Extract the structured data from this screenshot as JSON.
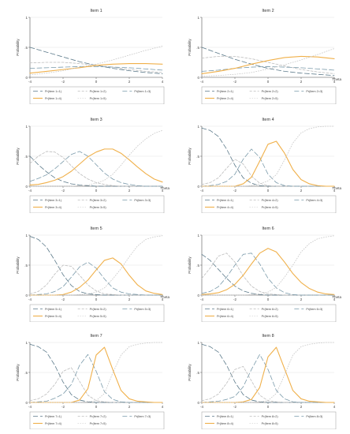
{
  "figure": {
    "style": {
      "series_colors": [
        "#5c7a8a",
        "#bdbdbd",
        "#7a9aaa",
        "#f0b04a",
        "#c6c6c6"
      ],
      "series_dash": [
        "long-dash",
        "dash",
        "long-dash",
        "solid",
        "dot"
      ]
    }
  },
  "chart_data": [
    {
      "type": "line",
      "title": "Item 1",
      "ylabel": "Probability",
      "xlabel": "",
      "xlim": [
        -4,
        4
      ],
      "ylim": [
        0,
        1
      ],
      "xticks": [
        "-4",
        "-2",
        "0",
        "2",
        "4"
      ],
      "yticks": [
        "0",
        ".5",
        "1"
      ],
      "x": [
        -4,
        -3,
        -2,
        -1,
        0,
        1,
        2,
        3,
        4
      ],
      "series": [
        {
          "name": "Pr(item 1=1)",
          "values": [
            0.5,
            0.42,
            0.34,
            0.26,
            0.2,
            0.15,
            0.11,
            0.08,
            0.06
          ]
        },
        {
          "name": "Pr(item 1=2)",
          "values": [
            0.24,
            0.25,
            0.25,
            0.23,
            0.2,
            0.17,
            0.13,
            0.1,
            0.08
          ]
        },
        {
          "name": "Pr(item 1=3)",
          "values": [
            0.15,
            0.16,
            0.17,
            0.18,
            0.18,
            0.17,
            0.16,
            0.14,
            0.12
          ]
        },
        {
          "name": "Pr(item 1=4)",
          "values": [
            0.07,
            0.1,
            0.13,
            0.16,
            0.2,
            0.22,
            0.23,
            0.23,
            0.22
          ]
        },
        {
          "name": "Pr(item 1=5)",
          "values": [
            0.04,
            0.07,
            0.11,
            0.17,
            0.22,
            0.29,
            0.37,
            0.45,
            0.52
          ]
        }
      ],
      "legend": "bottom"
    },
    {
      "type": "line",
      "title": "Item 2",
      "ylabel": "Probability",
      "xlabel": "Theta",
      "xlim": [
        -4,
        4
      ],
      "ylim": [
        0,
        1
      ],
      "xticks": [
        "-4",
        "-2",
        "0",
        "2",
        "4"
      ],
      "yticks": [
        "0",
        ".5",
        "1"
      ],
      "x": [
        -4,
        -3,
        -2,
        -1,
        0,
        1,
        2,
        3,
        4
      ],
      "series": [
        {
          "name": "Pr(item 2=1)",
          "values": [
            0.5,
            0.4,
            0.3,
            0.22,
            0.15,
            0.1,
            0.07,
            0.05,
            0.03
          ]
        },
        {
          "name": "Pr(item 2=2)",
          "values": [
            0.32,
            0.35,
            0.35,
            0.31,
            0.25,
            0.19,
            0.13,
            0.09,
            0.06
          ]
        },
        {
          "name": "Pr(item 2=3)",
          "values": [
            0.1,
            0.12,
            0.15,
            0.17,
            0.18,
            0.17,
            0.16,
            0.14,
            0.12
          ]
        },
        {
          "name": "Pr(item 2=4)",
          "values": [
            0.06,
            0.1,
            0.15,
            0.22,
            0.28,
            0.33,
            0.35,
            0.34,
            0.31
          ]
        },
        {
          "name": "Pr(item 2=5)",
          "values": [
            0.02,
            0.03,
            0.05,
            0.08,
            0.14,
            0.21,
            0.29,
            0.38,
            0.48
          ]
        }
      ],
      "legend": "bottom"
    },
    {
      "type": "line",
      "title": "Item 3",
      "ylabel": "Probability",
      "xlabel": "Theta",
      "xlim": [
        -4,
        4
      ],
      "ylim": [
        0,
        1
      ],
      "xticks": [
        "-4",
        "-2",
        "0",
        "2",
        "4"
      ],
      "yticks": [
        "0",
        ".5",
        "1"
      ],
      "x": [
        -4,
        -3.5,
        -3,
        -2.5,
        -2,
        -1.5,
        -1,
        -0.5,
        0,
        0.5,
        1,
        1.5,
        2,
        2.5,
        3,
        3.5,
        4
      ],
      "series": [
        {
          "name": "Pr(item 3=1)",
          "values": [
            0.5,
            0.36,
            0.24,
            0.14,
            0.08,
            0.04,
            0.02,
            0.01,
            0.0,
            0.0,
            0.0,
            0.0,
            0.0,
            0.0,
            0.0,
            0.0,
            0.0
          ]
        },
        {
          "name": "Pr(item 3=2)",
          "values": [
            0.38,
            0.5,
            0.58,
            0.57,
            0.48,
            0.34,
            0.21,
            0.12,
            0.06,
            0.03,
            0.01,
            0.0,
            0.0,
            0.0,
            0.0,
            0.0,
            0.0
          ]
        },
        {
          "name": "Pr(item 3=3)",
          "values": [
            0.08,
            0.13,
            0.19,
            0.29,
            0.41,
            0.53,
            0.58,
            0.5,
            0.36,
            0.22,
            0.12,
            0.06,
            0.03,
            0.01,
            0.0,
            0.0,
            0.0
          ]
        },
        {
          "name": "Pr(item 3=4)",
          "values": [
            0.02,
            0.03,
            0.06,
            0.1,
            0.16,
            0.25,
            0.37,
            0.49,
            0.57,
            0.62,
            0.62,
            0.55,
            0.44,
            0.32,
            0.21,
            0.12,
            0.07
          ]
        },
        {
          "name": "Pr(item 3=5)",
          "values": [
            0.0,
            0.0,
            0.0,
            0.0,
            0.0,
            0.0,
            0.01,
            0.02,
            0.05,
            0.1,
            0.2,
            0.35,
            0.52,
            0.67,
            0.79,
            0.88,
            0.93
          ]
        }
      ],
      "legend": "bottom"
    },
    {
      "type": "line",
      "title": "Item 4",
      "ylabel": "Probability",
      "xlabel": "Theta",
      "xlim": [
        -4,
        4
      ],
      "ylim": [
        0,
        1
      ],
      "xticks": [
        "-4",
        "-2",
        "0",
        "2",
        "4"
      ],
      "yticks": [
        "0",
        ".5",
        "1"
      ],
      "x": [
        -4,
        -3.5,
        -3,
        -2.5,
        -2,
        -1.5,
        -1,
        -0.5,
        0,
        0.5,
        1,
        1.5,
        2,
        2.5,
        3,
        3.5,
        4
      ],
      "series": [
        {
          "name": "Pr(item 4=1)",
          "values": [
            0.97,
            0.93,
            0.83,
            0.62,
            0.35,
            0.14,
            0.05,
            0.01,
            0.0,
            0.0,
            0.0,
            0.0,
            0.0,
            0.0,
            0.0,
            0.0,
            0.0
          ]
        },
        {
          "name": "Pr(item 4=2)",
          "values": [
            0.03,
            0.06,
            0.14,
            0.3,
            0.45,
            0.37,
            0.17,
            0.05,
            0.01,
            0.0,
            0.0,
            0.0,
            0.0,
            0.0,
            0.0,
            0.0,
            0.0
          ]
        },
        {
          "name": "Pr(item 4=3)",
          "values": [
            0.0,
            0.01,
            0.03,
            0.08,
            0.2,
            0.45,
            0.62,
            0.48,
            0.2,
            0.06,
            0.01,
            0.0,
            0.0,
            0.0,
            0.0,
            0.0,
            0.0
          ]
        },
        {
          "name": "Pr(item 4=4)",
          "values": [
            0.0,
            0.0,
            0.0,
            0.0,
            0.0,
            0.04,
            0.15,
            0.42,
            0.7,
            0.75,
            0.55,
            0.28,
            0.11,
            0.04,
            0.01,
            0.0,
            0.0
          ]
        },
        {
          "name": "Pr(item 4=5)",
          "values": [
            0.0,
            0.0,
            0.0,
            0.0,
            0.0,
            0.0,
            0.01,
            0.04,
            0.09,
            0.19,
            0.44,
            0.72,
            0.89,
            0.96,
            0.99,
            1.0,
            1.0
          ]
        }
      ],
      "legend": "bottom"
    },
    {
      "type": "line",
      "title": "Item 5",
      "ylabel": "Probability",
      "xlabel": "Theta",
      "xlim": [
        -4,
        4
      ],
      "ylim": [
        0,
        1
      ],
      "xticks": [
        "-4",
        "-2",
        "0",
        "2",
        "4"
      ],
      "yticks": [
        "0",
        ".5",
        "1"
      ],
      "x": [
        -4,
        -3.5,
        -3,
        -2.5,
        -2,
        -1.5,
        -1,
        -0.5,
        0,
        0.5,
        1,
        1.5,
        2,
        2.5,
        3,
        3.5,
        4
      ],
      "series": [
        {
          "name": "Pr(item 5=1)",
          "values": [
            0.98,
            0.93,
            0.8,
            0.58,
            0.34,
            0.16,
            0.06,
            0.02,
            0.01,
            0.0,
            0.0,
            0.0,
            0.0,
            0.0,
            0.0,
            0.0,
            0.0
          ]
        },
        {
          "name": "Pr(item 5=2)",
          "values": [
            0.02,
            0.06,
            0.17,
            0.35,
            0.5,
            0.48,
            0.33,
            0.17,
            0.07,
            0.02,
            0.01,
            0.0,
            0.0,
            0.0,
            0.0,
            0.0,
            0.0
          ]
        },
        {
          "name": "Pr(item 5=3)",
          "values": [
            0.0,
            0.01,
            0.02,
            0.06,
            0.14,
            0.3,
            0.47,
            0.55,
            0.45,
            0.27,
            0.12,
            0.05,
            0.02,
            0.01,
            0.0,
            0.0,
            0.0
          ]
        },
        {
          "name": "Pr(item 5=4)",
          "values": [
            0.0,
            0.0,
            0.0,
            0.0,
            0.01,
            0.05,
            0.13,
            0.25,
            0.42,
            0.58,
            0.62,
            0.52,
            0.33,
            0.17,
            0.07,
            0.03,
            0.01
          ]
        },
        {
          "name": "Pr(item 5=5)",
          "values": [
            0.0,
            0.0,
            0.0,
            0.0,
            0.0,
            0.0,
            0.01,
            0.02,
            0.05,
            0.12,
            0.27,
            0.44,
            0.64,
            0.82,
            0.93,
            0.97,
            0.99
          ]
        }
      ],
      "legend": "bottom"
    },
    {
      "type": "line",
      "title": "Item 6",
      "ylabel": "Probability",
      "xlabel": "Theta",
      "xlim": [
        -4,
        4
      ],
      "ylim": [
        0,
        1
      ],
      "xticks": [
        "-4",
        "-2",
        "0",
        "2",
        "4"
      ],
      "yticks": [
        "0",
        ".5",
        "1"
      ],
      "x": [
        -4,
        -3.5,
        -3,
        -2.5,
        -2,
        -1.5,
        -1,
        -0.5,
        0,
        0.5,
        1,
        1.5,
        2,
        2.5,
        3,
        3.5,
        4
      ],
      "series": [
        {
          "name": "Pr(item 6=1)",
          "values": [
            0.68,
            0.58,
            0.43,
            0.28,
            0.15,
            0.07,
            0.03,
            0.01,
            0.0,
            0.0,
            0.0,
            0.0,
            0.0,
            0.0,
            0.0,
            0.0,
            0.0
          ]
        },
        {
          "name": "Pr(item 6=2)",
          "values": [
            0.28,
            0.45,
            0.65,
            0.7,
            0.55,
            0.32,
            0.15,
            0.06,
            0.02,
            0.01,
            0.0,
            0.0,
            0.0,
            0.0,
            0.0,
            0.0,
            0.0
          ]
        },
        {
          "name": "Pr(item 6=3)",
          "values": [
            0.03,
            0.06,
            0.14,
            0.3,
            0.5,
            0.68,
            0.7,
            0.52,
            0.28,
            0.12,
            0.04,
            0.01,
            0.0,
            0.0,
            0.0,
            0.0,
            0.0
          ]
        },
        {
          "name": "Pr(item 6=4)",
          "values": [
            0.01,
            0.02,
            0.04,
            0.09,
            0.18,
            0.33,
            0.52,
            0.7,
            0.78,
            0.72,
            0.55,
            0.36,
            0.21,
            0.11,
            0.05,
            0.02,
            0.01
          ]
        },
        {
          "name": "Pr(item 6=5)",
          "values": [
            0.0,
            0.0,
            0.0,
            0.0,
            0.0,
            0.0,
            0.01,
            0.02,
            0.05,
            0.13,
            0.3,
            0.5,
            0.72,
            0.86,
            0.94,
            0.97,
            0.99
          ]
        }
      ],
      "legend": "bottom"
    },
    {
      "type": "line",
      "title": "Item 7",
      "ylabel": "Probability",
      "xlabel": "",
      "xlim": [
        -4,
        4
      ],
      "ylim": [
        0,
        1
      ],
      "xticks": [
        "-4",
        "-2",
        "0",
        "2",
        "4"
      ],
      "yticks": [
        "0",
        ".5",
        "1"
      ],
      "x": [
        -4,
        -3.5,
        -3,
        -2.5,
        -2,
        -1.5,
        -1,
        -0.5,
        0,
        0.5,
        1,
        1.5,
        2,
        2.5,
        3,
        3.5,
        4
      ],
      "series": [
        {
          "name": "Pr(item 7=1)",
          "values": [
            0.97,
            0.93,
            0.84,
            0.62,
            0.34,
            0.13,
            0.04,
            0.01,
            0.0,
            0.0,
            0.0,
            0.0,
            0.0,
            0.0,
            0.0,
            0.0,
            0.0
          ]
        },
        {
          "name": "Pr(item 7=2)",
          "values": [
            0.03,
            0.06,
            0.14,
            0.3,
            0.52,
            0.58,
            0.35,
            0.12,
            0.03,
            0.01,
            0.0,
            0.0,
            0.0,
            0.0,
            0.0,
            0.0,
            0.0
          ]
        },
        {
          "name": "Pr(item 7=3)",
          "values": [
            0.0,
            0.01,
            0.02,
            0.07,
            0.14,
            0.3,
            0.62,
            0.8,
            0.52,
            0.18,
            0.05,
            0.01,
            0.0,
            0.0,
            0.0,
            0.0,
            0.0
          ]
        },
        {
          "name": "Pr(item 7=4)",
          "values": [
            0.0,
            0.0,
            0.0,
            0.0,
            0.0,
            0.0,
            0.04,
            0.23,
            0.79,
            0.92,
            0.55,
            0.2,
            0.06,
            0.02,
            0.01,
            0.0,
            0.0
          ]
        },
        {
          "name": "Pr(item 7=5)",
          "values": [
            0.0,
            0.0,
            0.0,
            0.0,
            0.0,
            0.0,
            0.0,
            0.01,
            0.03,
            0.15,
            0.49,
            0.79,
            0.93,
            0.97,
            0.99,
            1.0,
            1.0
          ]
        }
      ],
      "legend": "bottom"
    },
    {
      "type": "line",
      "title": "Item 8",
      "ylabel": "Probability",
      "xlabel": "",
      "xlim": [
        -4,
        4
      ],
      "ylim": [
        0,
        1
      ],
      "xticks": [
        "-4",
        "-2",
        "0",
        "2",
        "4"
      ],
      "yticks": [
        "0",
        ".5",
        "1"
      ],
      "x": [
        -4,
        -3.5,
        -3,
        -2.5,
        -2,
        -1.5,
        -1,
        -0.5,
        0,
        0.5,
        1,
        1.5,
        2,
        2.5,
        3,
        3.5,
        4
      ],
      "series": [
        {
          "name": "Pr(item 8=1)",
          "values": [
            0.97,
            0.93,
            0.84,
            0.62,
            0.34,
            0.13,
            0.04,
            0.01,
            0.0,
            0.0,
            0.0,
            0.0,
            0.0,
            0.0,
            0.0,
            0.0,
            0.0
          ]
        },
        {
          "name": "Pr(item 8=2)",
          "values": [
            0.03,
            0.06,
            0.14,
            0.32,
            0.55,
            0.6,
            0.36,
            0.12,
            0.03,
            0.01,
            0.0,
            0.0,
            0.0,
            0.0,
            0.0,
            0.0,
            0.0
          ]
        },
        {
          "name": "Pr(item 8=3)",
          "values": [
            0.0,
            0.01,
            0.02,
            0.05,
            0.1,
            0.26,
            0.55,
            0.8,
            0.55,
            0.2,
            0.06,
            0.01,
            0.0,
            0.0,
            0.0,
            0.0,
            0.0
          ]
        },
        {
          "name": "Pr(item 8=4)",
          "values": [
            0.0,
            0.0,
            0.0,
            0.0,
            0.0,
            0.01,
            0.05,
            0.25,
            0.76,
            0.92,
            0.56,
            0.2,
            0.06,
            0.02,
            0.01,
            0.0,
            0.0
          ]
        },
        {
          "name": "Pr(item 8=5)",
          "values": [
            0.0,
            0.0,
            0.0,
            0.0,
            0.0,
            0.0,
            0.0,
            0.01,
            0.03,
            0.15,
            0.46,
            0.79,
            0.93,
            0.97,
            0.99,
            1.0,
            1.0
          ]
        }
      ],
      "legend": "bottom"
    }
  ]
}
